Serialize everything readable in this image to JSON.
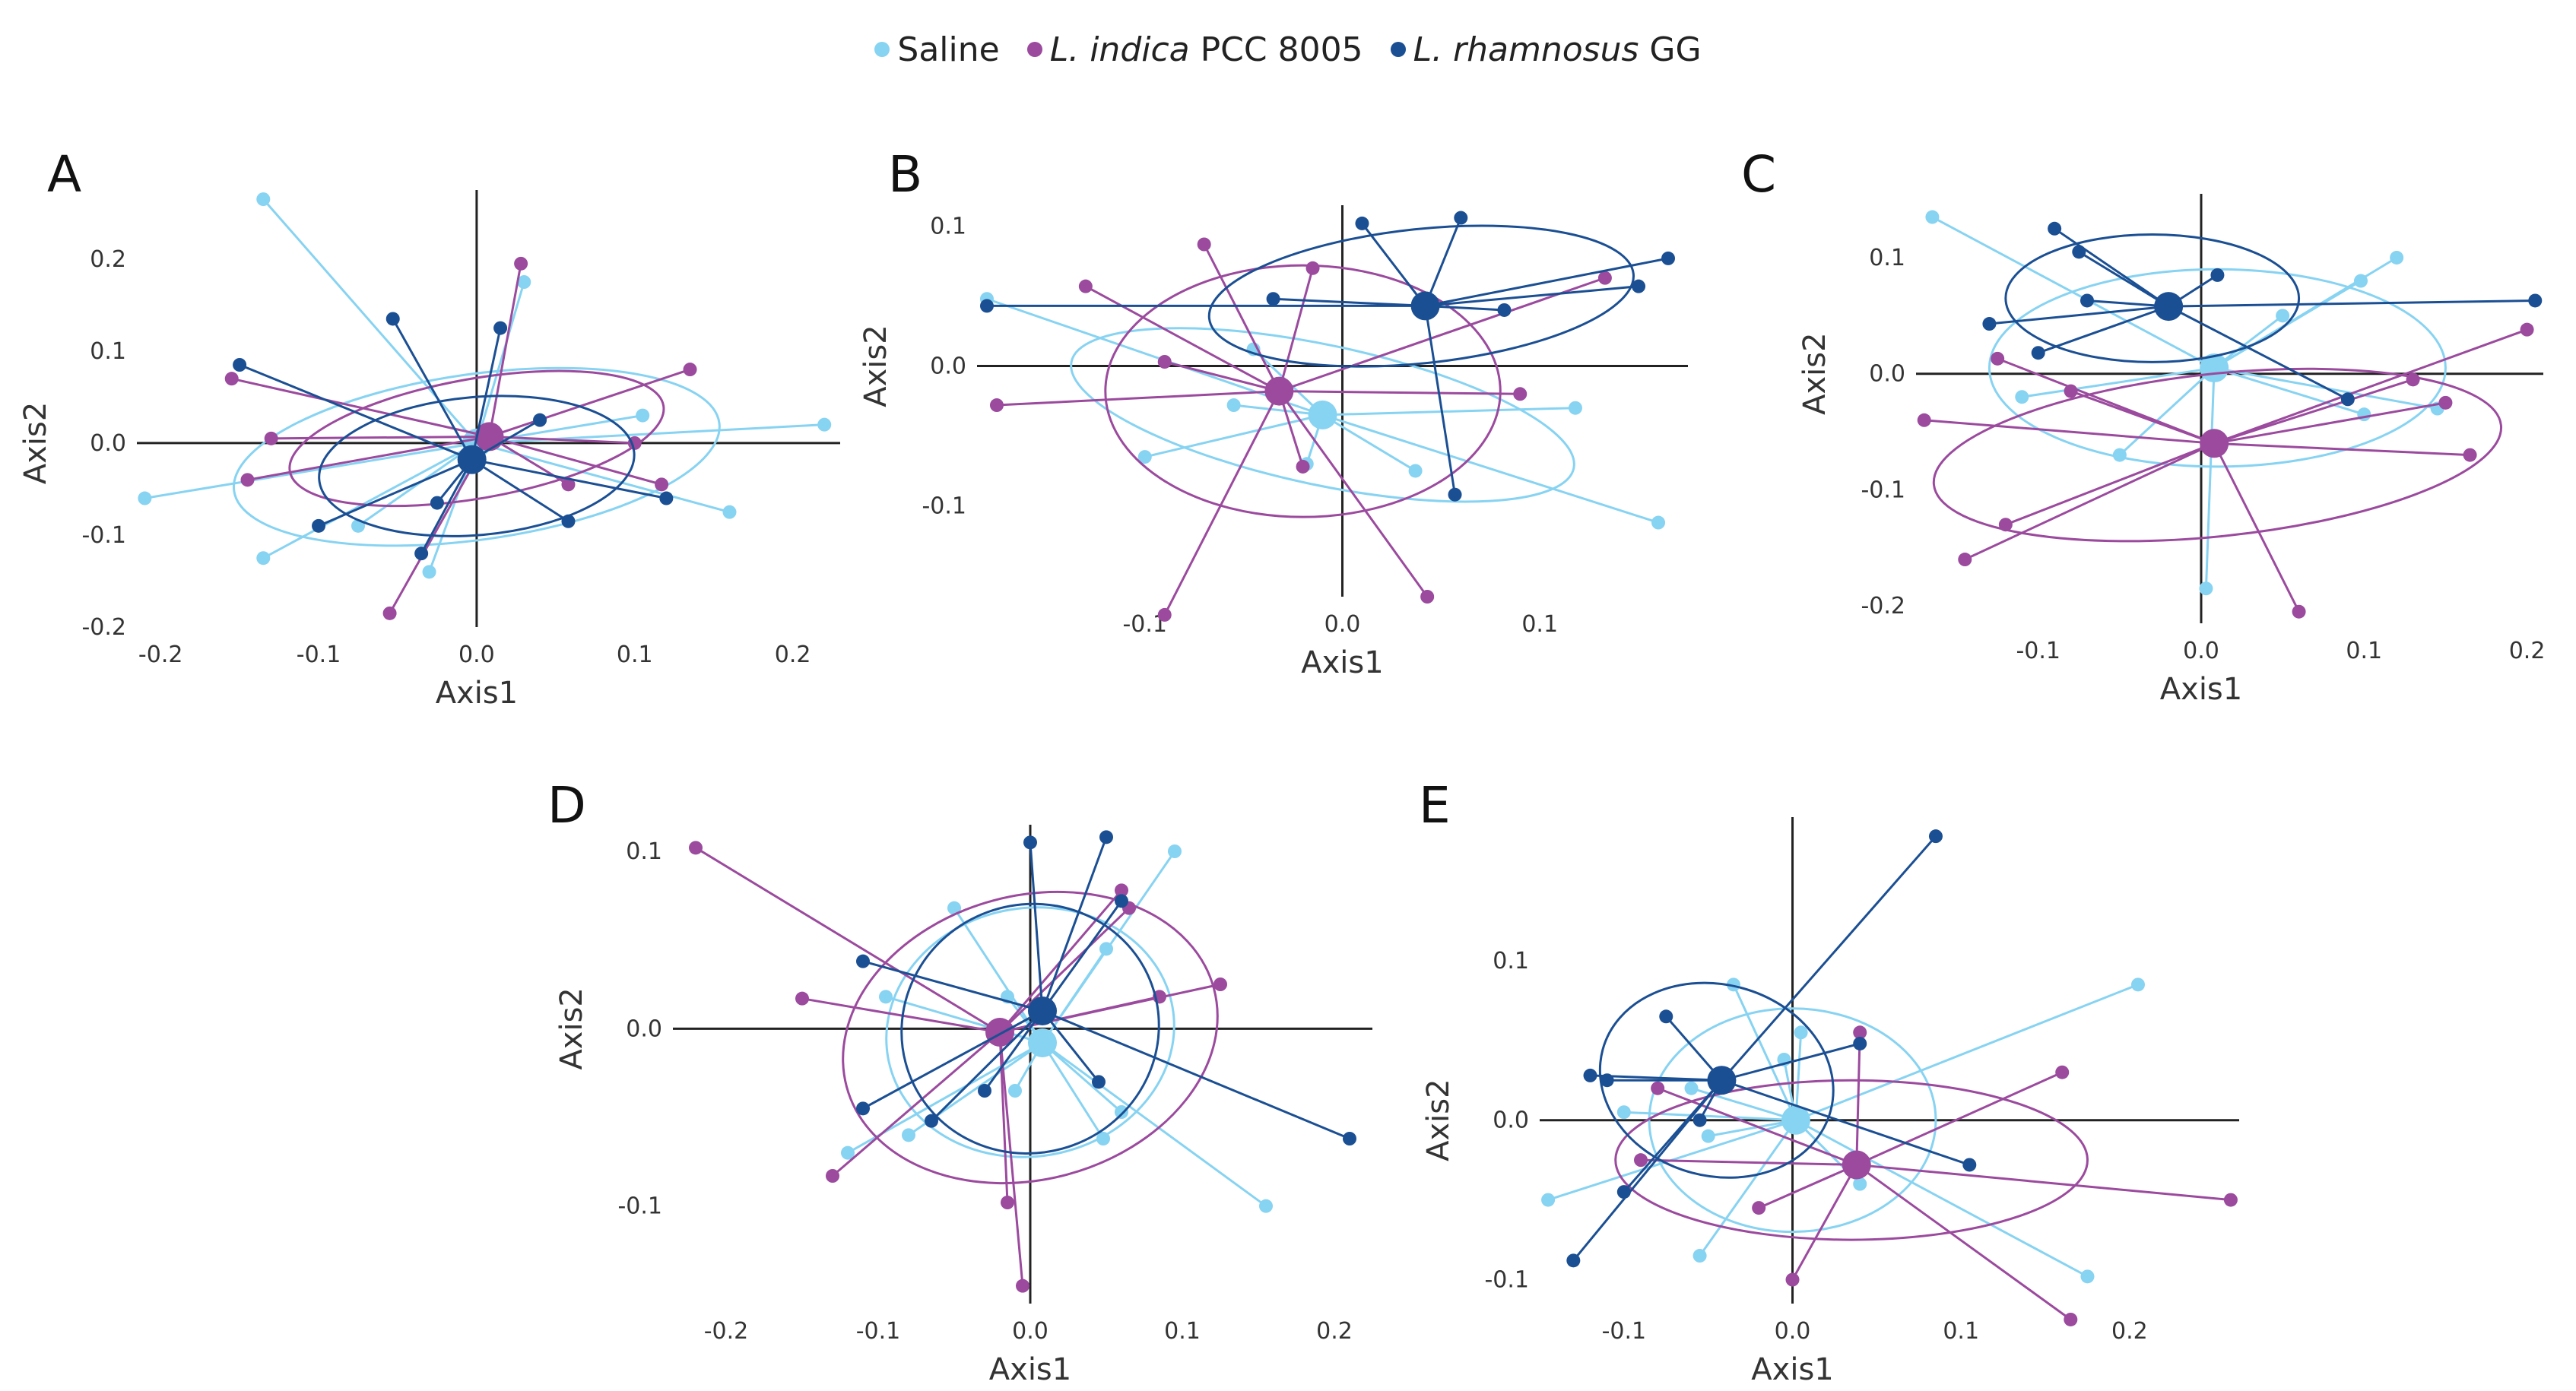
{
  "legend": {
    "items": [
      {
        "key": "saline",
        "italic": "",
        "rest": "Saline"
      },
      {
        "key": "lindica",
        "italic": "L. indica",
        "rest": " PCC 8005"
      },
      {
        "key": "lrham",
        "italic": "L. rhamnosus",
        "rest": " GG"
      }
    ]
  },
  "colors": {
    "saline": "#87d3f2",
    "lindica": "#9b4a9e",
    "lrham": "#1b4f93"
  },
  "chart_data": [
    {
      "type": "scatter",
      "panel": "A",
      "xlabel": "Axis1",
      "ylabel": "Axis2",
      "xlim": [
        -0.215,
        0.23
      ],
      "ylim": [
        -0.2,
        0.275
      ],
      "xticks": [
        -0.2,
        -0.1,
        0.0,
        0.1,
        0.2
      ],
      "xtick_labels": [
        "-0.2",
        "-0.1",
        "0.0",
        "0.1",
        "0.2"
      ],
      "yticks": [
        -0.2,
        -0.1,
        0.0,
        0.1,
        0.2
      ],
      "ytick_labels": [
        "-0.2",
        "-0.1",
        "0.0",
        "0.1",
        "0.2"
      ],
      "groups": [
        {
          "name": "Saline",
          "key": "saline",
          "centroid": [
            0.0,
            0.0
          ],
          "points": [
            [
              -0.135,
              0.265
            ],
            [
              0.03,
              0.175
            ],
            [
              0.105,
              0.03
            ],
            [
              0.22,
              0.02
            ],
            [
              0.16,
              -0.075
            ],
            [
              -0.21,
              -0.06
            ],
            [
              -0.135,
              -0.125
            ],
            [
              -0.075,
              -0.09
            ],
            [
              -0.03,
              -0.14
            ]
          ],
          "ellipse": {
            "cx": 0.0,
            "cy": -0.015,
            "rx": 0.155,
            "ry": 0.09,
            "angle": -8
          }
        },
        {
          "name": "L. indica PCC 8005",
          "key": "lindica",
          "centroid": [
            0.008,
            0.007
          ],
          "points": [
            [
              0.028,
              0.195
            ],
            [
              0.135,
              0.08
            ],
            [
              -0.155,
              0.07
            ],
            [
              -0.13,
              0.005
            ],
            [
              -0.145,
              -0.04
            ],
            [
              0.1,
              0.0
            ],
            [
              0.058,
              -0.045
            ],
            [
              0.117,
              -0.045
            ],
            [
              -0.055,
              -0.185
            ]
          ],
          "ellipse": {
            "cx": 0.0,
            "cy": 0.005,
            "rx": 0.12,
            "ry": 0.065,
            "angle": -10
          }
        },
        {
          "name": "L. rhamnosus GG",
          "key": "lrham",
          "centroid": [
            -0.003,
            -0.018
          ],
          "points": [
            [
              -0.15,
              0.085
            ],
            [
              -0.053,
              0.135
            ],
            [
              0.015,
              0.125
            ],
            [
              0.04,
              0.025
            ],
            [
              0.12,
              -0.06
            ],
            [
              0.058,
              -0.085
            ],
            [
              -0.1,
              -0.09
            ],
            [
              -0.025,
              -0.065
            ],
            [
              -0.035,
              -0.12
            ]
          ],
          "ellipse": {
            "cx": 0.0,
            "cy": -0.025,
            "rx": 0.1,
            "ry": 0.075,
            "angle": -5
          }
        }
      ]
    },
    {
      "type": "scatter",
      "panel": "B",
      "xlabel": "Axis1",
      "ylabel": "Axis2",
      "xlim": [
        -0.185,
        0.175
      ],
      "ylim": [
        -0.165,
        0.115
      ],
      "xticks": [
        -0.1,
        0.0,
        0.1
      ],
      "xtick_labels": [
        "-0.1",
        "0.0",
        "0.1"
      ],
      "yticks": [
        -0.1,
        0.0,
        0.1
      ],
      "ytick_labels": [
        "-0.1",
        "0.0",
        "0.1"
      ],
      "groups": [
        {
          "name": "Saline",
          "key": "saline",
          "centroid": [
            -0.01,
            -0.035
          ],
          "points": [
            [
              -0.18,
              0.048
            ],
            [
              -0.045,
              0.012
            ],
            [
              -0.055,
              -0.028
            ],
            [
              -0.1,
              -0.065
            ],
            [
              -0.018,
              -0.07
            ],
            [
              0.037,
              -0.075
            ],
            [
              0.118,
              -0.03
            ],
            [
              0.16,
              -0.112
            ]
          ],
          "ellipse": {
            "cx": -0.01,
            "cy": -0.035,
            "rx": 0.13,
            "ry": 0.05,
            "angle": 12
          }
        },
        {
          "name": "L. indica PCC 8005",
          "key": "lindica",
          "centroid": [
            -0.032,
            -0.018
          ],
          "points": [
            [
              -0.07,
              0.087
            ],
            [
              -0.13,
              0.057
            ],
            [
              -0.015,
              0.07
            ],
            [
              -0.09,
              0.003
            ],
            [
              -0.175,
              -0.028
            ],
            [
              0.09,
              -0.02
            ],
            [
              -0.02,
              -0.072
            ],
            [
              -0.09,
              -0.178
            ],
            [
              0.043,
              -0.165
            ],
            [
              0.133,
              0.063
            ]
          ],
          "ellipse": {
            "cx": -0.02,
            "cy": -0.018,
            "rx": 0.1,
            "ry": 0.09,
            "angle": 0
          }
        },
        {
          "name": "L. rhamnosus GG",
          "key": "lrham",
          "centroid": [
            0.042,
            0.043
          ],
          "points": [
            [
              -0.18,
              0.043
            ],
            [
              -0.035,
              0.048
            ],
            [
              0.01,
              0.102
            ],
            [
              0.06,
              0.106
            ],
            [
              0.165,
              0.077
            ],
            [
              0.15,
              0.057
            ],
            [
              0.082,
              0.04
            ],
            [
              0.057,
              -0.092
            ]
          ],
          "ellipse": {
            "cx": 0.04,
            "cy": 0.05,
            "rx": 0.108,
            "ry": 0.048,
            "angle": -6
          }
        }
      ]
    },
    {
      "type": "scatter",
      "panel": "C",
      "xlabel": "Axis1",
      "ylabel": "Axis2",
      "xlim": [
        -0.175,
        0.21
      ],
      "ylim": [
        -0.215,
        0.155
      ],
      "xticks": [
        -0.1,
        0.0,
        0.1,
        0.2
      ],
      "xtick_labels": [
        "-0.1",
        "0.0",
        "0.1",
        "0.2"
      ],
      "yticks": [
        -0.2,
        -0.1,
        0.0,
        0.1
      ],
      "ytick_labels": [
        "-0.2",
        "-0.1",
        "0.0",
        "0.1"
      ],
      "groups": [
        {
          "name": "Saline",
          "key": "saline",
          "centroid": [
            0.008,
            0.005
          ],
          "points": [
            [
              -0.165,
              0.135
            ],
            [
              0.12,
              0.1
            ],
            [
              0.098,
              0.08
            ],
            [
              0.05,
              0.05
            ],
            [
              -0.11,
              -0.02
            ],
            [
              0.1,
              -0.035
            ],
            [
              0.145,
              -0.03
            ],
            [
              -0.05,
              -0.07
            ],
            [
              0.003,
              -0.185
            ]
          ],
          "ellipse": {
            "cx": 0.01,
            "cy": 0.005,
            "rx": 0.14,
            "ry": 0.085,
            "angle": 0
          }
        },
        {
          "name": "L. indica PCC 8005",
          "key": "lindica",
          "centroid": [
            0.008,
            -0.06
          ],
          "points": [
            [
              -0.125,
              0.013
            ],
            [
              -0.08,
              -0.015
            ],
            [
              0.13,
              -0.005
            ],
            [
              0.2,
              0.038
            ],
            [
              0.15,
              -0.025
            ],
            [
              0.165,
              -0.07
            ],
            [
              -0.17,
              -0.04
            ],
            [
              -0.12,
              -0.13
            ],
            [
              -0.145,
              -0.16
            ],
            [
              0.06,
              -0.205
            ]
          ],
          "ellipse": {
            "cx": 0.01,
            "cy": -0.07,
            "rx": 0.175,
            "ry": 0.07,
            "angle": -6
          }
        },
        {
          "name": "L. rhamnosus GG",
          "key": "lrham",
          "centroid": [
            -0.02,
            0.058
          ],
          "points": [
            [
              -0.09,
              0.125
            ],
            [
              -0.075,
              0.105
            ],
            [
              -0.13,
              0.043
            ],
            [
              -0.07,
              0.063
            ],
            [
              0.01,
              0.085
            ],
            [
              0.205,
              0.063
            ],
            [
              -0.1,
              0.018
            ],
            [
              0.09,
              -0.022
            ]
          ],
          "ellipse": {
            "cx": -0.03,
            "cy": 0.065,
            "rx": 0.09,
            "ry": 0.055,
            "angle": 0
          }
        }
      ]
    },
    {
      "type": "scatter",
      "panel": "D",
      "xlabel": "Axis1",
      "ylabel": "Axis2",
      "xlim": [
        -0.235,
        0.225
      ],
      "ylim": [
        -0.155,
        0.115
      ],
      "xticks": [
        -0.2,
        -0.1,
        0.0,
        0.1,
        0.2
      ],
      "xtick_labels": [
        "-0.2",
        "-0.1",
        "0.0",
        "0.1",
        "0.2"
      ],
      "yticks": [
        -0.1,
        0.0,
        0.1
      ],
      "ytick_labels": [
        "-0.1",
        "0.0",
        "0.1"
      ],
      "groups": [
        {
          "name": "Saline",
          "key": "saline",
          "centroid": [
            0.008,
            -0.008
          ],
          "points": [
            [
              0.095,
              0.1
            ],
            [
              -0.05,
              0.068
            ],
            [
              -0.015,
              0.018
            ],
            [
              0.05,
              0.045
            ],
            [
              -0.095,
              0.018
            ],
            [
              -0.08,
              -0.06
            ],
            [
              -0.12,
              -0.07
            ],
            [
              0.048,
              -0.062
            ],
            [
              0.06,
              -0.047
            ],
            [
              0.155,
              -0.1
            ],
            [
              -0.01,
              -0.035
            ]
          ],
          "ellipse": {
            "cx": 0.0,
            "cy": -0.002,
            "rx": 0.095,
            "ry": 0.07,
            "angle": -10
          }
        },
        {
          "name": "L. indica PCC 8005",
          "key": "lindica",
          "centroid": [
            -0.02,
            -0.002
          ],
          "points": [
            [
              -0.22,
              0.102
            ],
            [
              -0.15,
              0.017
            ],
            [
              -0.13,
              -0.083
            ],
            [
              -0.015,
              -0.098
            ],
            [
              -0.005,
              -0.145
            ],
            [
              0.125,
              0.025
            ],
            [
              0.085,
              0.018
            ],
            [
              0.065,
              0.068
            ],
            [
              0.06,
              0.078
            ]
          ],
          "ellipse": {
            "cx": 0.0,
            "cy": -0.005,
            "rx": 0.125,
            "ry": 0.08,
            "angle": -15
          }
        },
        {
          "name": "L. rhamnosus GG",
          "key": "lrham",
          "centroid": [
            0.008,
            0.01
          ],
          "points": [
            [
              0.0,
              0.105
            ],
            [
              0.05,
              0.108
            ],
            [
              0.06,
              0.072
            ],
            [
              -0.11,
              0.038
            ],
            [
              -0.11,
              -0.045
            ],
            [
              -0.065,
              -0.052
            ],
            [
              -0.03,
              -0.035
            ],
            [
              0.045,
              -0.03
            ],
            [
              0.21,
              -0.062
            ]
          ],
          "ellipse": {
            "cx": 0.0,
            "cy": 0.0,
            "rx": 0.085,
            "ry": 0.07,
            "angle": -20
          }
        }
      ]
    },
    {
      "type": "scatter",
      "panel": "E",
      "xlabel": "Axis1",
      "ylabel": "Axis2",
      "xlim": [
        -0.15,
        0.265
      ],
      "ylim": [
        -0.115,
        0.19
      ],
      "xticks": [
        -0.1,
        0.0,
        0.1,
        0.2
      ],
      "xtick_labels": [
        "-0.1",
        "0.0",
        "0.1",
        "0.2"
      ],
      "yticks": [
        -0.1,
        0.0,
        0.1
      ],
      "ytick_labels": [
        "-0.1",
        "0.0",
        "0.1"
      ],
      "groups": [
        {
          "name": "Saline",
          "key": "saline",
          "centroid": [
            0.002,
            0.0
          ],
          "points": [
            [
              0.205,
              0.085
            ],
            [
              -0.035,
              0.085
            ],
            [
              0.005,
              0.055
            ],
            [
              -0.005,
              0.038
            ],
            [
              -0.06,
              0.02
            ],
            [
              -0.1,
              0.005
            ],
            [
              -0.05,
              -0.01
            ],
            [
              -0.145,
              -0.05
            ],
            [
              -0.055,
              -0.085
            ],
            [
              0.175,
              -0.098
            ],
            [
              0.04,
              -0.04
            ]
          ],
          "ellipse": {
            "cx": 0.0,
            "cy": 0.0,
            "rx": 0.085,
            "ry": 0.07,
            "angle": 0
          }
        },
        {
          "name": "L. indica PCC 8005",
          "key": "lindica",
          "centroid": [
            0.038,
            -0.028
          ],
          "points": [
            [
              0.04,
              0.055
            ],
            [
              -0.08,
              0.02
            ],
            [
              -0.09,
              -0.025
            ],
            [
              -0.02,
              -0.055
            ],
            [
              0.0,
              -0.1
            ],
            [
              0.16,
              0.03
            ],
            [
              0.26,
              -0.05
            ],
            [
              0.165,
              -0.125
            ]
          ],
          "ellipse": {
            "cx": 0.035,
            "cy": -0.025,
            "rx": 0.14,
            "ry": 0.05,
            "angle": 0
          }
        },
        {
          "name": "L. rhamnosus GG",
          "key": "lrham",
          "centroid": [
            -0.042,
            0.025
          ],
          "points": [
            [
              0.085,
              0.178
            ],
            [
              -0.075,
              0.065
            ],
            [
              -0.12,
              0.028
            ],
            [
              -0.11,
              0.025
            ],
            [
              0.04,
              0.048
            ],
            [
              -0.055,
              0.0
            ],
            [
              -0.1,
              -0.045
            ],
            [
              0.105,
              -0.028
            ],
            [
              -0.13,
              -0.088
            ]
          ],
          "ellipse": {
            "cx": -0.045,
            "cy": 0.025,
            "rx": 0.07,
            "ry": 0.06,
            "angle": 15
          }
        }
      ]
    }
  ]
}
